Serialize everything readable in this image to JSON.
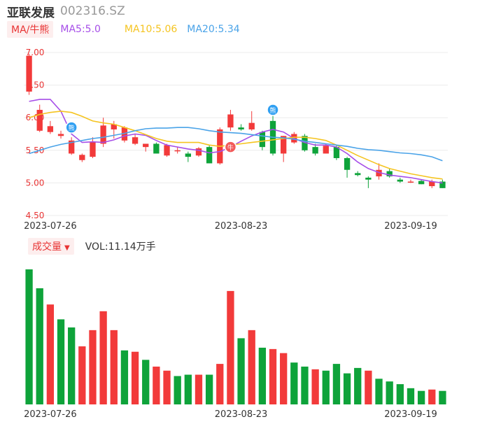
{
  "header": {
    "name": "亚联发展",
    "code": "002316.SZ"
  },
  "legend": {
    "ma_toggle": "MA/牛熊",
    "ma5": "MA5:5.0",
    "ma10": "MA10:5.06",
    "ma20": "MA20:5.34"
  },
  "volume_header": {
    "toggle": "成交量",
    "vol_text": "VOL:11.14万手"
  },
  "colors": {
    "up": "#f23a3a",
    "down": "#0ea33a",
    "ma5": "#a64ee8",
    "ma10": "#f5c420",
    "ma20": "#4aa3e8",
    "axis_label": "#e83434",
    "date_label": "#333333"
  },
  "markers": {
    "bull": "牛",
    "bear": "熊"
  },
  "chart_data": [
    {
      "type": "candlestick",
      "title": "",
      "y_ticks": [
        "7.00",
        "6.50",
        "6.00",
        "5.50",
        "5.00",
        "4.50"
      ],
      "ylim": [
        4.5,
        7.0
      ],
      "x_labels": [
        "2023-07-26",
        "2023-08-23",
        "2023-09-19"
      ],
      "x_label_index": [
        2,
        20,
        36
      ],
      "candles": [
        {
          "o": 6.4,
          "h": 6.98,
          "l": 6.35,
          "c": 6.95
        },
        {
          "o": 5.8,
          "h": 6.2,
          "l": 5.78,
          "c": 6.12
        },
        {
          "o": 5.78,
          "h": 5.95,
          "l": 5.75,
          "c": 5.87
        },
        {
          "o": 5.72,
          "h": 5.8,
          "l": 5.68,
          "c": 5.75
        },
        {
          "o": 5.45,
          "h": 5.7,
          "l": 5.43,
          "c": 5.65
        },
        {
          "o": 5.35,
          "h": 5.45,
          "l": 5.32,
          "c": 5.43
        },
        {
          "o": 5.4,
          "h": 5.7,
          "l": 5.38,
          "c": 5.63
        },
        {
          "o": 5.6,
          "h": 6.0,
          "l": 5.55,
          "c": 5.88
        },
        {
          "o": 5.82,
          "h": 5.95,
          "l": 5.68,
          "c": 5.9
        },
        {
          "o": 5.65,
          "h": 5.87,
          "l": 5.62,
          "c": 5.85
        },
        {
          "o": 5.6,
          "h": 5.75,
          "l": 5.58,
          "c": 5.7
        },
        {
          "o": 5.55,
          "h": 5.6,
          "l": 5.48,
          "c": 5.6
        },
        {
          "o": 5.6,
          "h": 5.62,
          "l": 5.45,
          "c": 5.45
        },
        {
          "o": 5.42,
          "h": 5.6,
          "l": 5.4,
          "c": 5.58
        },
        {
          "o": 5.5,
          "h": 5.55,
          "l": 5.45,
          "c": 5.5
        },
        {
          "o": 5.45,
          "h": 5.48,
          "l": 5.32,
          "c": 5.4
        },
        {
          "o": 5.42,
          "h": 5.55,
          "l": 5.4,
          "c": 5.53
        },
        {
          "o": 5.55,
          "h": 5.58,
          "l": 5.3,
          "c": 5.3
        },
        {
          "o": 5.3,
          "h": 5.85,
          "l": 5.28,
          "c": 5.82
        },
        {
          "o": 5.85,
          "h": 6.12,
          "l": 5.8,
          "c": 6.05
        },
        {
          "o": 5.85,
          "h": 5.9,
          "l": 5.8,
          "c": 5.82
        },
        {
          "o": 5.82,
          "h": 6.1,
          "l": 5.8,
          "c": 5.92
        },
        {
          "o": 5.78,
          "h": 5.8,
          "l": 5.5,
          "c": 5.55
        },
        {
          "o": 5.95,
          "h": 6.15,
          "l": 5.42,
          "c": 5.45
        },
        {
          "o": 5.45,
          "h": 5.72,
          "l": 5.32,
          "c": 5.72
        },
        {
          "o": 5.62,
          "h": 5.78,
          "l": 5.6,
          "c": 5.75
        },
        {
          "o": 5.72,
          "h": 5.75,
          "l": 5.48,
          "c": 5.5
        },
        {
          "o": 5.55,
          "h": 5.6,
          "l": 5.42,
          "c": 5.45
        },
        {
          "o": 5.45,
          "h": 5.6,
          "l": 5.45,
          "c": 5.57
        },
        {
          "o": 5.55,
          "h": 5.58,
          "l": 5.35,
          "c": 5.38
        },
        {
          "o": 5.38,
          "h": 5.4,
          "l": 5.08,
          "c": 5.2
        },
        {
          "o": 5.15,
          "h": 5.18,
          "l": 5.1,
          "c": 5.12
        },
        {
          "o": 5.08,
          "h": 5.1,
          "l": 4.92,
          "c": 5.05
        },
        {
          "o": 5.1,
          "h": 5.3,
          "l": 5.05,
          "c": 5.2
        },
        {
          "o": 5.18,
          "h": 5.22,
          "l": 5.08,
          "c": 5.1
        },
        {
          "o": 5.05,
          "h": 5.08,
          "l": 5.0,
          "c": 5.02
        },
        {
          "o": 5.02,
          "h": 5.05,
          "l": 5.0,
          "c": 5.02
        },
        {
          "o": 5.03,
          "h": 5.05,
          "l": 4.98,
          "c": 4.98
        },
        {
          "o": 4.95,
          "h": 5.05,
          "l": 4.92,
          "c": 5.02
        },
        {
          "o": 5.02,
          "h": 5.05,
          "l": 4.92,
          "c": 4.92
        }
      ],
      "series": [
        {
          "name": "MA5",
          "values": [
            6.25,
            6.28,
            6.28,
            6.1,
            5.75,
            5.62,
            5.63,
            5.62,
            5.66,
            5.72,
            5.75,
            5.73,
            5.65,
            5.58,
            5.55,
            5.52,
            5.5,
            5.46,
            5.48,
            5.55,
            5.64,
            5.72,
            5.78,
            5.82,
            5.78,
            5.68,
            5.62,
            5.58,
            5.58,
            5.55,
            5.45,
            5.32,
            5.22,
            5.16,
            5.12,
            5.1,
            5.08,
            5.05,
            5.02,
            5.0
          ]
        },
        {
          "name": "MA10",
          "values": [
            6.0,
            6.05,
            6.08,
            6.1,
            6.08,
            6.02,
            5.95,
            5.92,
            5.9,
            5.85,
            5.8,
            5.74,
            5.68,
            5.64,
            5.62,
            5.62,
            5.62,
            5.58,
            5.56,
            5.58,
            5.6,
            5.62,
            5.64,
            5.66,
            5.68,
            5.7,
            5.7,
            5.68,
            5.65,
            5.58,
            5.5,
            5.42,
            5.35,
            5.28,
            5.22,
            5.18,
            5.14,
            5.11,
            5.08,
            5.06
          ]
        },
        {
          "name": "MA20",
          "values": [
            5.45,
            5.5,
            5.55,
            5.59,
            5.62,
            5.65,
            5.68,
            5.7,
            5.73,
            5.76,
            5.8,
            5.83,
            5.84,
            5.84,
            5.85,
            5.85,
            5.83,
            5.8,
            5.78,
            5.77,
            5.76,
            5.74,
            5.72,
            5.7,
            5.69,
            5.67,
            5.64,
            5.62,
            5.6,
            5.58,
            5.56,
            5.53,
            5.51,
            5.5,
            5.48,
            5.46,
            5.45,
            5.43,
            5.4,
            5.34
          ]
        }
      ],
      "markers": [
        {
          "index": 4,
          "label": "熊",
          "price": 5.85
        },
        {
          "index": 19,
          "label": "牛",
          "price": 5.55
        },
        {
          "index": 23,
          "label": "熊",
          "price": 6.12
        }
      ]
    },
    {
      "type": "bar",
      "title": "",
      "x_labels": [
        "2023-07-26",
        "2023-08-23",
        "2023-09-19"
      ],
      "values": [
        100,
        86,
        74,
        63,
        57,
        43,
        55,
        69,
        55,
        40,
        39,
        33,
        28,
        25,
        21,
        22,
        22,
        22,
        30,
        84,
        49,
        55,
        42,
        41,
        38,
        31,
        28,
        26,
        25,
        30,
        23,
        27,
        25,
        19,
        17,
        15,
        12,
        10,
        11,
        10
      ],
      "directions": [
        "down",
        "down",
        "up",
        "down",
        "down",
        "up",
        "up",
        "up",
        "up",
        "down",
        "up",
        "down",
        "up",
        "up",
        "down",
        "down",
        "up",
        "down",
        "up",
        "up",
        "down",
        "up",
        "down",
        "up",
        "up",
        "down",
        "down",
        "up",
        "down",
        "down",
        "down",
        "down",
        "up",
        "down",
        "down",
        "down",
        "down",
        "down",
        "up",
        "down"
      ]
    }
  ]
}
